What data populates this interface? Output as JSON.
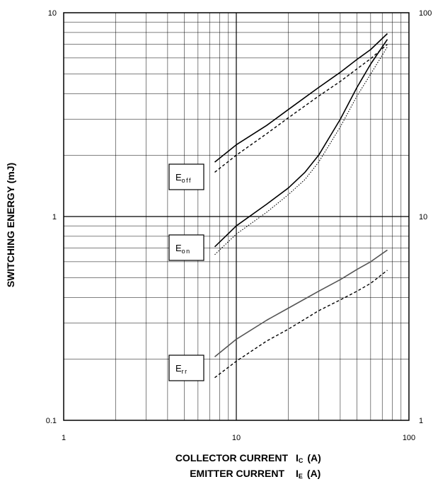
{
  "chart_data": {
    "type": "line",
    "xscale": "log",
    "yscale": "log",
    "xlim": [
      1,
      100
    ],
    "ylim": [
      0.1,
      10
    ],
    "y2lim": [
      1,
      100
    ],
    "grid": true,
    "ylabel": "SWITCHING ENERGY (mJ)",
    "xlabel_line1": "COLLECTOR CURRENT",
    "xlabel_line1_sym": "I",
    "xlabel_line1_sub": "C",
    "xlabel_line1_unit": "(A)",
    "xlabel_line2": "EMITTER CURRENT",
    "xlabel_line2_sym": "I",
    "xlabel_line2_sub": "E",
    "xlabel_line2_unit": "(A)",
    "x_ticks": [
      "1",
      "10",
      "100"
    ],
    "y_ticks": [
      "0.1",
      "1",
      "10"
    ],
    "y2_ticks": [
      "1",
      "10",
      "100"
    ],
    "series": [
      {
        "label_main": "E",
        "label_sub": "off",
        "style": "solid",
        "x": [
          7.5,
          10,
          15,
          20,
          30,
          40,
          50,
          60,
          75
        ],
        "y": [
          1.85,
          2.25,
          2.8,
          3.35,
          4.3,
          5.1,
          5.9,
          6.6,
          7.9
        ]
      },
      {
        "style": "dashed",
        "x": [
          7.5,
          10,
          15,
          20,
          30,
          40,
          50,
          60,
          75
        ],
        "y": [
          1.65,
          2.0,
          2.55,
          3.05,
          3.9,
          4.6,
          5.3,
          5.95,
          7.0
        ]
      },
      {
        "label_main": "E",
        "label_sub": "on",
        "style": "solid",
        "x": [
          7.5,
          10,
          15,
          20,
          25,
          30,
          40,
          50,
          60,
          75
        ],
        "y": [
          0.71,
          0.9,
          1.15,
          1.38,
          1.65,
          2.0,
          3.0,
          4.3,
          5.6,
          7.4
        ]
      },
      {
        "style": "dotted",
        "x": [
          7.5,
          10,
          15,
          20,
          25,
          30,
          40,
          50,
          60,
          75
        ],
        "y": [
          0.65,
          0.82,
          1.05,
          1.28,
          1.52,
          1.85,
          2.75,
          3.9,
          5.0,
          6.8
        ]
      },
      {
        "label_main": "E",
        "label_sub": "rr",
        "style": "solid-gray",
        "x": [
          7.5,
          10,
          15,
          20,
          30,
          40,
          50,
          60,
          75
        ],
        "y": [
          0.205,
          0.25,
          0.31,
          0.355,
          0.43,
          0.49,
          0.55,
          0.6,
          0.685
        ]
      },
      {
        "style": "dashed",
        "x": [
          7.5,
          10,
          15,
          20,
          30,
          40,
          50,
          60,
          75
        ],
        "y": [
          0.162,
          0.195,
          0.245,
          0.28,
          0.345,
          0.39,
          0.43,
          0.47,
          0.545
        ]
      }
    ]
  }
}
